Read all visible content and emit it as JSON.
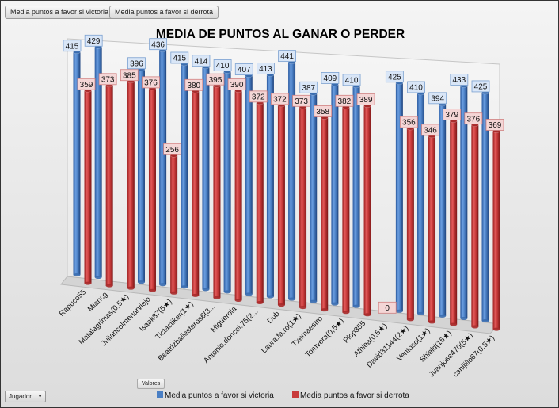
{
  "pivot_buttons": {
    "victoria": "Media puntos a favor si victoria",
    "derrota": "Media puntos a favor si derrota"
  },
  "valores_label": "Valores",
  "filter_dropdown": {
    "label": "Jugador",
    "arrow_icon": "dropdown-arrow-icon"
  },
  "colors": {
    "victoria": "#4a7fc4",
    "derrota": "#c83a3a",
    "label_fill_victoria": "#d9e6f7",
    "label_fill_derrota": "#f4d6d6"
  },
  "chart_data": {
    "type": "bar",
    "title": "MEDIA DE PUNTOS AL GANAR O PERDER",
    "categories": [
      "Rapuco55",
      "Miancg",
      "Matalagrimas(0,5★)",
      "Juliancolmenarviejo",
      "Isaak87(5★)",
      "Tictactiker(1★)",
      "Beatrizballesteros6(3...",
      "Miguerola",
      "Antonio.doncel.75(2...",
      "Dub",
      "Laura.fa.ro(1★)",
      "Txemaestro",
      "Tomvera(0,5★)",
      "Plop355",
      "Athlea(0,5★)",
      "David31144(2★)",
      "Ventoso(1★)",
      "Shield(16★)",
      "Juanjose470(5★)",
      "canijillo67(0,5★)"
    ],
    "series": [
      {
        "name": "Media puntos a favor si victoria",
        "values": [
          415,
          429,
          null,
          396,
          436,
          415,
          414,
          410,
          407,
          413,
          441,
          387,
          409,
          410,
          null,
          425,
          410,
          394,
          433,
          425
        ]
      },
      {
        "name": "Media puntos a favor si derrota",
        "values": [
          359,
          373,
          385,
          376,
          256,
          380,
          395,
          390,
          372,
          372,
          373,
          358,
          382,
          389,
          0,
          356,
          346,
          379,
          376,
          369
        ]
      }
    ],
    "legend": [
      "Media puntos a favor si victoria",
      "Media puntos a favor si derrota"
    ],
    "legend_position": "bottom",
    "ylim": [
      0,
      450
    ],
    "grid": false
  }
}
